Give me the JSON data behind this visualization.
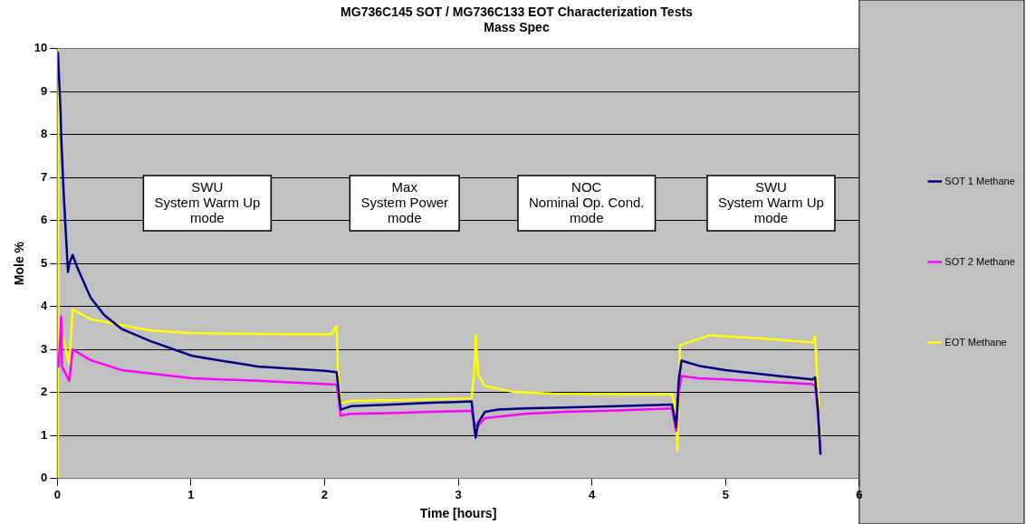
{
  "chart_data": {
    "type": "line",
    "title": "MG736C145 SOT / MG736C133 EOT Characterization Tests",
    "subtitle": "Mass Spec",
    "xlabel": "Time [hours]",
    "ylabel": "Mole %",
    "xlim": [
      0,
      6
    ],
    "xticks": [
      0,
      1,
      2,
      3,
      4,
      5,
      6
    ],
    "ylim": [
      0,
      10
    ],
    "yticks": [
      0,
      1,
      2,
      3,
      4,
      5,
      6,
      7,
      8,
      9,
      10
    ],
    "grid": "y",
    "legend": "right",
    "marker": "none",
    "line_style": "solid",
    "annotations": [
      "SWU\nSystem Warm Up\nmode",
      "Max\nSystem Power\nmode",
      "NOC\nNominal Op. Cond.\nmode",
      "SWU\nSystem Warm Up\nmode"
    ],
    "series": [
      {
        "name": "SOT 1 Methane",
        "color": "#000080",
        "x": [
          0.005,
          0.025,
          0.03,
          0.05,
          0.08,
          0.09,
          0.115,
          0.15,
          0.25,
          0.35,
          0.48,
          0.7,
          1.01,
          1.5,
          2.0,
          2.09,
          2.1,
          2.12,
          2.2,
          2.5,
          2.8,
          3.1,
          3.12,
          3.13,
          3.15,
          3.2,
          3.3,
          3.5,
          3.8,
          4.2,
          4.6,
          4.63,
          4.65,
          4.67,
          4.8,
          5.0,
          5.2,
          5.4,
          5.65,
          5.67,
          5.69,
          5.71
        ],
        "values": [
          9.9,
          8.5,
          7.9,
          6.5,
          4.8,
          5.0,
          5.2,
          4.9,
          4.2,
          3.8,
          3.48,
          3.19,
          2.85,
          2.6,
          2.5,
          2.47,
          2.2,
          1.6,
          1.68,
          1.72,
          1.76,
          1.79,
          1.2,
          0.95,
          1.3,
          1.55,
          1.6,
          1.63,
          1.65,
          1.68,
          1.72,
          1.2,
          2.3,
          2.74,
          2.62,
          2.52,
          2.45,
          2.38,
          2.3,
          2.35,
          1.63,
          0.57
        ]
      },
      {
        "name": "SOT 2 Methane",
        "color": "#ff00ff",
        "x": [
          0.01,
          0.03,
          0.035,
          0.09,
          0.115,
          0.25,
          0.48,
          1.01,
          1.5,
          2.09,
          2.1,
          2.12,
          2.2,
          2.5,
          2.8,
          3.1,
          3.12,
          3.14,
          3.2,
          3.5,
          3.8,
          4.2,
          4.6,
          4.63,
          4.65,
          4.67,
          4.8,
          5.0,
          5.3,
          5.65,
          5.67,
          5.69,
          5.71
        ],
        "values": [
          2.6,
          3.77,
          2.6,
          2.27,
          3.0,
          2.75,
          2.52,
          2.33,
          2.27,
          2.18,
          2.0,
          1.46,
          1.5,
          1.52,
          1.55,
          1.57,
          1.3,
          1.2,
          1.4,
          1.5,
          1.55,
          1.58,
          1.63,
          1.1,
          2.0,
          2.38,
          2.33,
          2.3,
          2.25,
          2.19,
          2.15,
          1.57,
          0.6
        ]
      },
      {
        "name": "EOT Methane",
        "color": "#ffff00",
        "x": [
          0.0,
          0.005,
          0.01,
          0.02,
          0.03,
          0.09,
          0.115,
          0.25,
          0.7,
          1.0,
          1.5,
          2.05,
          2.09,
          2.1,
          2.12,
          2.2,
          2.5,
          2.8,
          3.1,
          3.12,
          3.13,
          3.15,
          3.2,
          3.4,
          3.7,
          4.2,
          4.6,
          4.63,
          4.64,
          4.66,
          4.88,
          5.3,
          5.65,
          5.67,
          5.69,
          5.71
        ],
        "values": [
          0.0,
          10.0,
          3.0,
          3.3,
          3.4,
          2.67,
          3.93,
          3.7,
          3.44,
          3.38,
          3.36,
          3.35,
          3.55,
          2.5,
          1.75,
          1.8,
          1.82,
          1.84,
          1.86,
          2.5,
          3.33,
          2.4,
          2.15,
          2.02,
          1.97,
          1.96,
          1.96,
          1.5,
          0.64,
          3.1,
          3.33,
          3.25,
          3.16,
          3.3,
          2.05,
          0.62
        ]
      }
    ]
  }
}
